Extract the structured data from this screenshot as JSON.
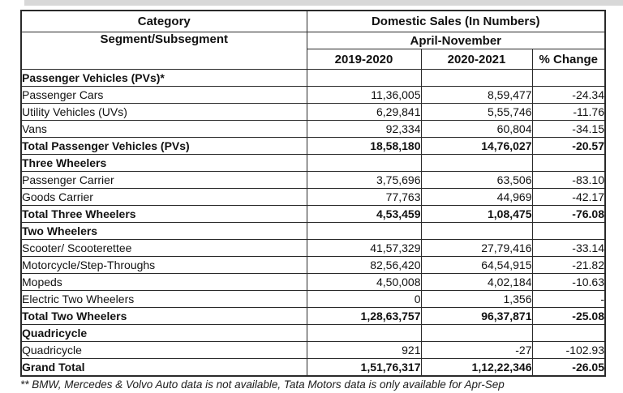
{
  "table": {
    "header": {
      "category_label": "Category",
      "segment_label": "Segment/Subsegment",
      "sales_label": "Domestic Sales (In Numbers)",
      "period_label": "April-November",
      "col_year1": "2019-2020",
      "col_year2": "2020-2021",
      "col_change": "% Change"
    },
    "rows": [
      {
        "label": "Passenger Vehicles (PVs)*",
        "type": "section",
        "v2019": "",
        "v2020": "",
        "change": ""
      },
      {
        "label": "Passenger Cars",
        "type": "data",
        "v2019": "11,36,005",
        "v2020": "8,59,477",
        "change": "-24.34"
      },
      {
        "label": "Utility Vehicles (UVs)",
        "type": "data",
        "v2019": "6,29,841",
        "v2020": "5,55,746",
        "change": "-11.76"
      },
      {
        "label": "Vans",
        "type": "data",
        "v2019": "92,334",
        "v2020": "60,804",
        "change": "-34.15"
      },
      {
        "label": "Total Passenger Vehicles (PVs)",
        "type": "total",
        "v2019": "18,58,180",
        "v2020": "14,76,027",
        "change": "-20.57"
      },
      {
        "label": "Three Wheelers",
        "type": "section",
        "v2019": "",
        "v2020": "",
        "change": ""
      },
      {
        "label": "Passenger Carrier",
        "type": "data",
        "v2019": "3,75,696",
        "v2020": "63,506",
        "change": "-83.10"
      },
      {
        "label": "Goods Carrier",
        "type": "data",
        "v2019": "77,763",
        "v2020": "44,969",
        "change": "-42.17"
      },
      {
        "label": "Total Three Wheelers",
        "type": "total",
        "v2019": "4,53,459",
        "v2020": "1,08,475",
        "change": "-76.08"
      },
      {
        "label": "Two Wheelers",
        "type": "section",
        "v2019": "",
        "v2020": "",
        "change": ""
      },
      {
        "label": "Scooter/ Scooterettee",
        "type": "data",
        "v2019": "41,57,329",
        "v2020": "27,79,416",
        "change": "-33.14"
      },
      {
        "label": "Motorcycle/Step-Throughs",
        "type": "data",
        "v2019": "82,56,420",
        "v2020": "64,54,915",
        "change": "-21.82"
      },
      {
        "label": "Mopeds",
        "type": "data",
        "v2019": "4,50,008",
        "v2020": "4,02,184",
        "change": "-10.63"
      },
      {
        "label": "Electric Two Wheelers",
        "type": "data",
        "v2019": "0",
        "v2020": "1,356",
        "change": "-"
      },
      {
        "label": "Total Two Wheelers",
        "type": "total",
        "v2019": "1,28,63,757",
        "v2020": "96,37,871",
        "change": "-25.08"
      },
      {
        "label": "Quadricycle",
        "type": "section",
        "v2019": "",
        "v2020": "",
        "change": ""
      },
      {
        "label": "Quadricycle",
        "type": "data",
        "v2019": "921",
        "v2020": "-27",
        "change": "-102.93"
      },
      {
        "label": "Grand Total",
        "type": "total",
        "v2019": "1,51,76,317",
        "v2020": "1,12,22,346",
        "change": "-26.05"
      }
    ]
  },
  "footnote": "** BMW, Mercedes & Volvo Auto data is not available, Tata Motors data is only available for Apr-Sep"
}
